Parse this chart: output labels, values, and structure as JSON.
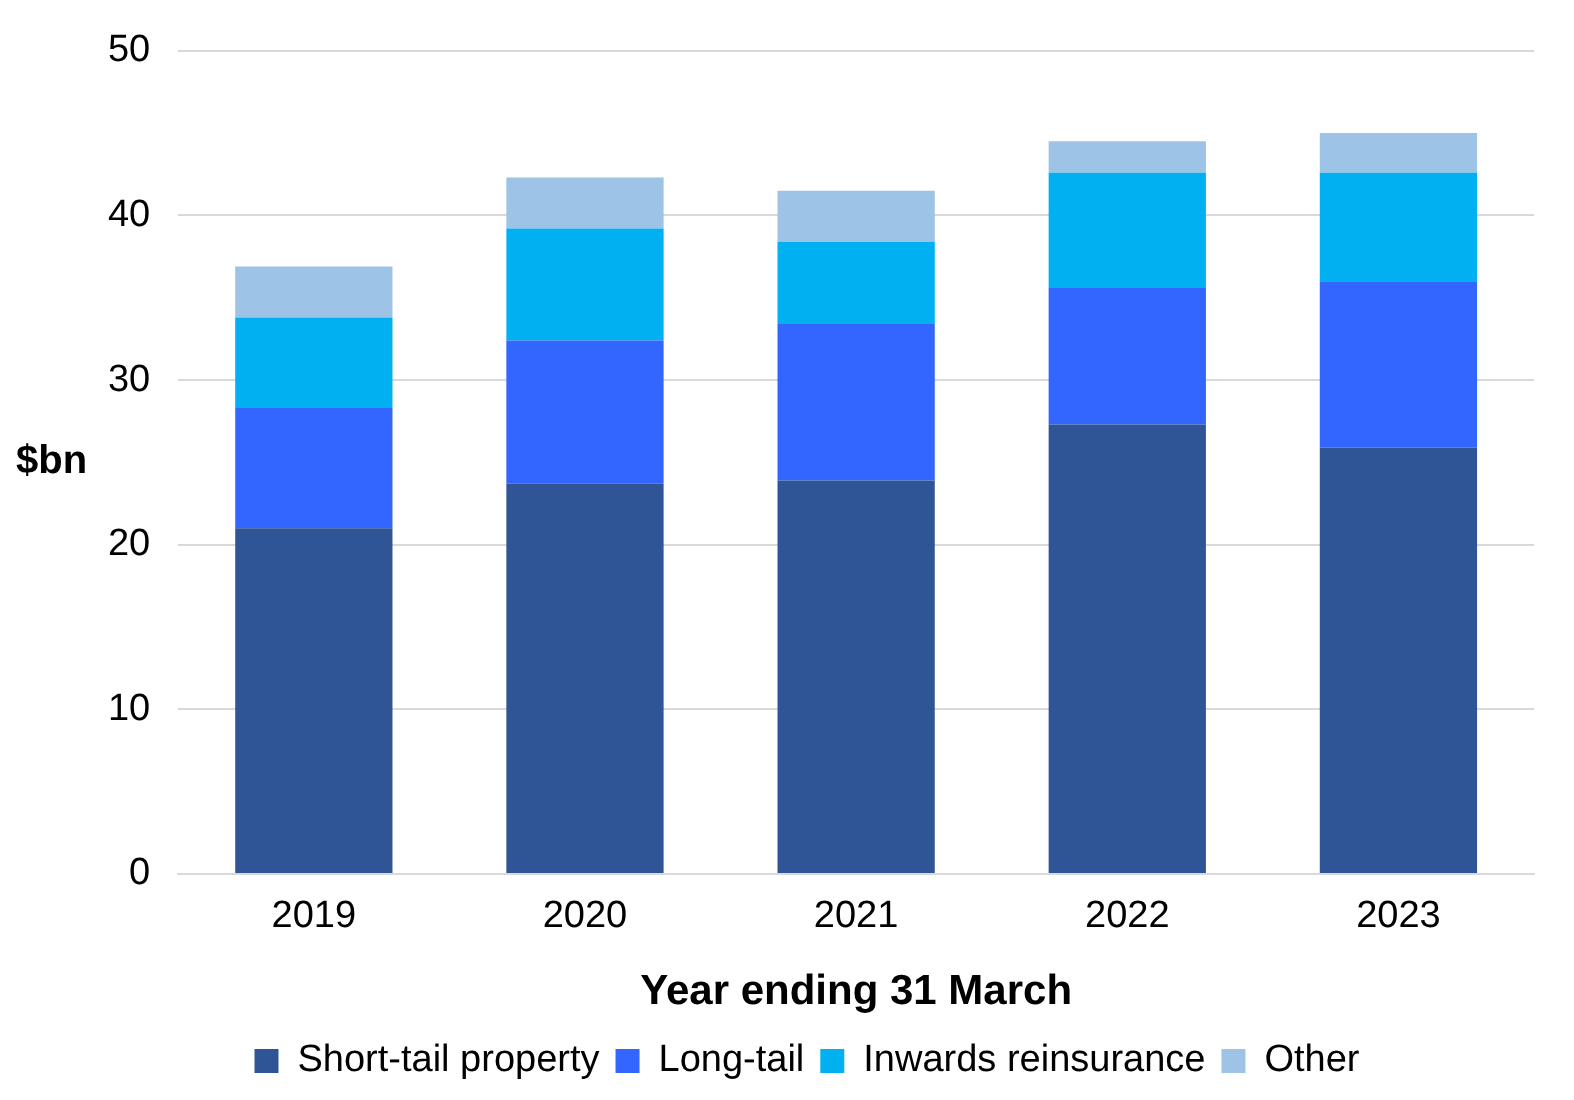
{
  "chart_data": {
    "type": "bar",
    "stacked": true,
    "xlabel": "Year ending 31 March",
    "ylabel": "$bn",
    "categories": [
      "2019",
      "2020",
      "2021",
      "2022",
      "2023"
    ],
    "series": [
      {
        "name": "Short-tail property",
        "color": "#2f5597",
        "values": [
          21.0,
          23.7,
          23.9,
          27.3,
          25.9
        ]
      },
      {
        "name": "Long-tail",
        "color": "#3366ff",
        "values": [
          7.3,
          8.7,
          9.5,
          8.3,
          10.1
        ]
      },
      {
        "name": "Inwards reinsurance",
        "color": "#00b0f0",
        "values": [
          5.5,
          6.8,
          5.0,
          7.0,
          6.6
        ]
      },
      {
        "name": "Other",
        "color": "#9dc3e6",
        "values": [
          3.1,
          3.1,
          3.1,
          1.9,
          2.4
        ]
      }
    ],
    "ylim": [
      0,
      50
    ],
    "yticks": [
      0,
      10,
      20,
      30,
      40,
      50
    ],
    "grid": "y",
    "legend": "bottom"
  }
}
